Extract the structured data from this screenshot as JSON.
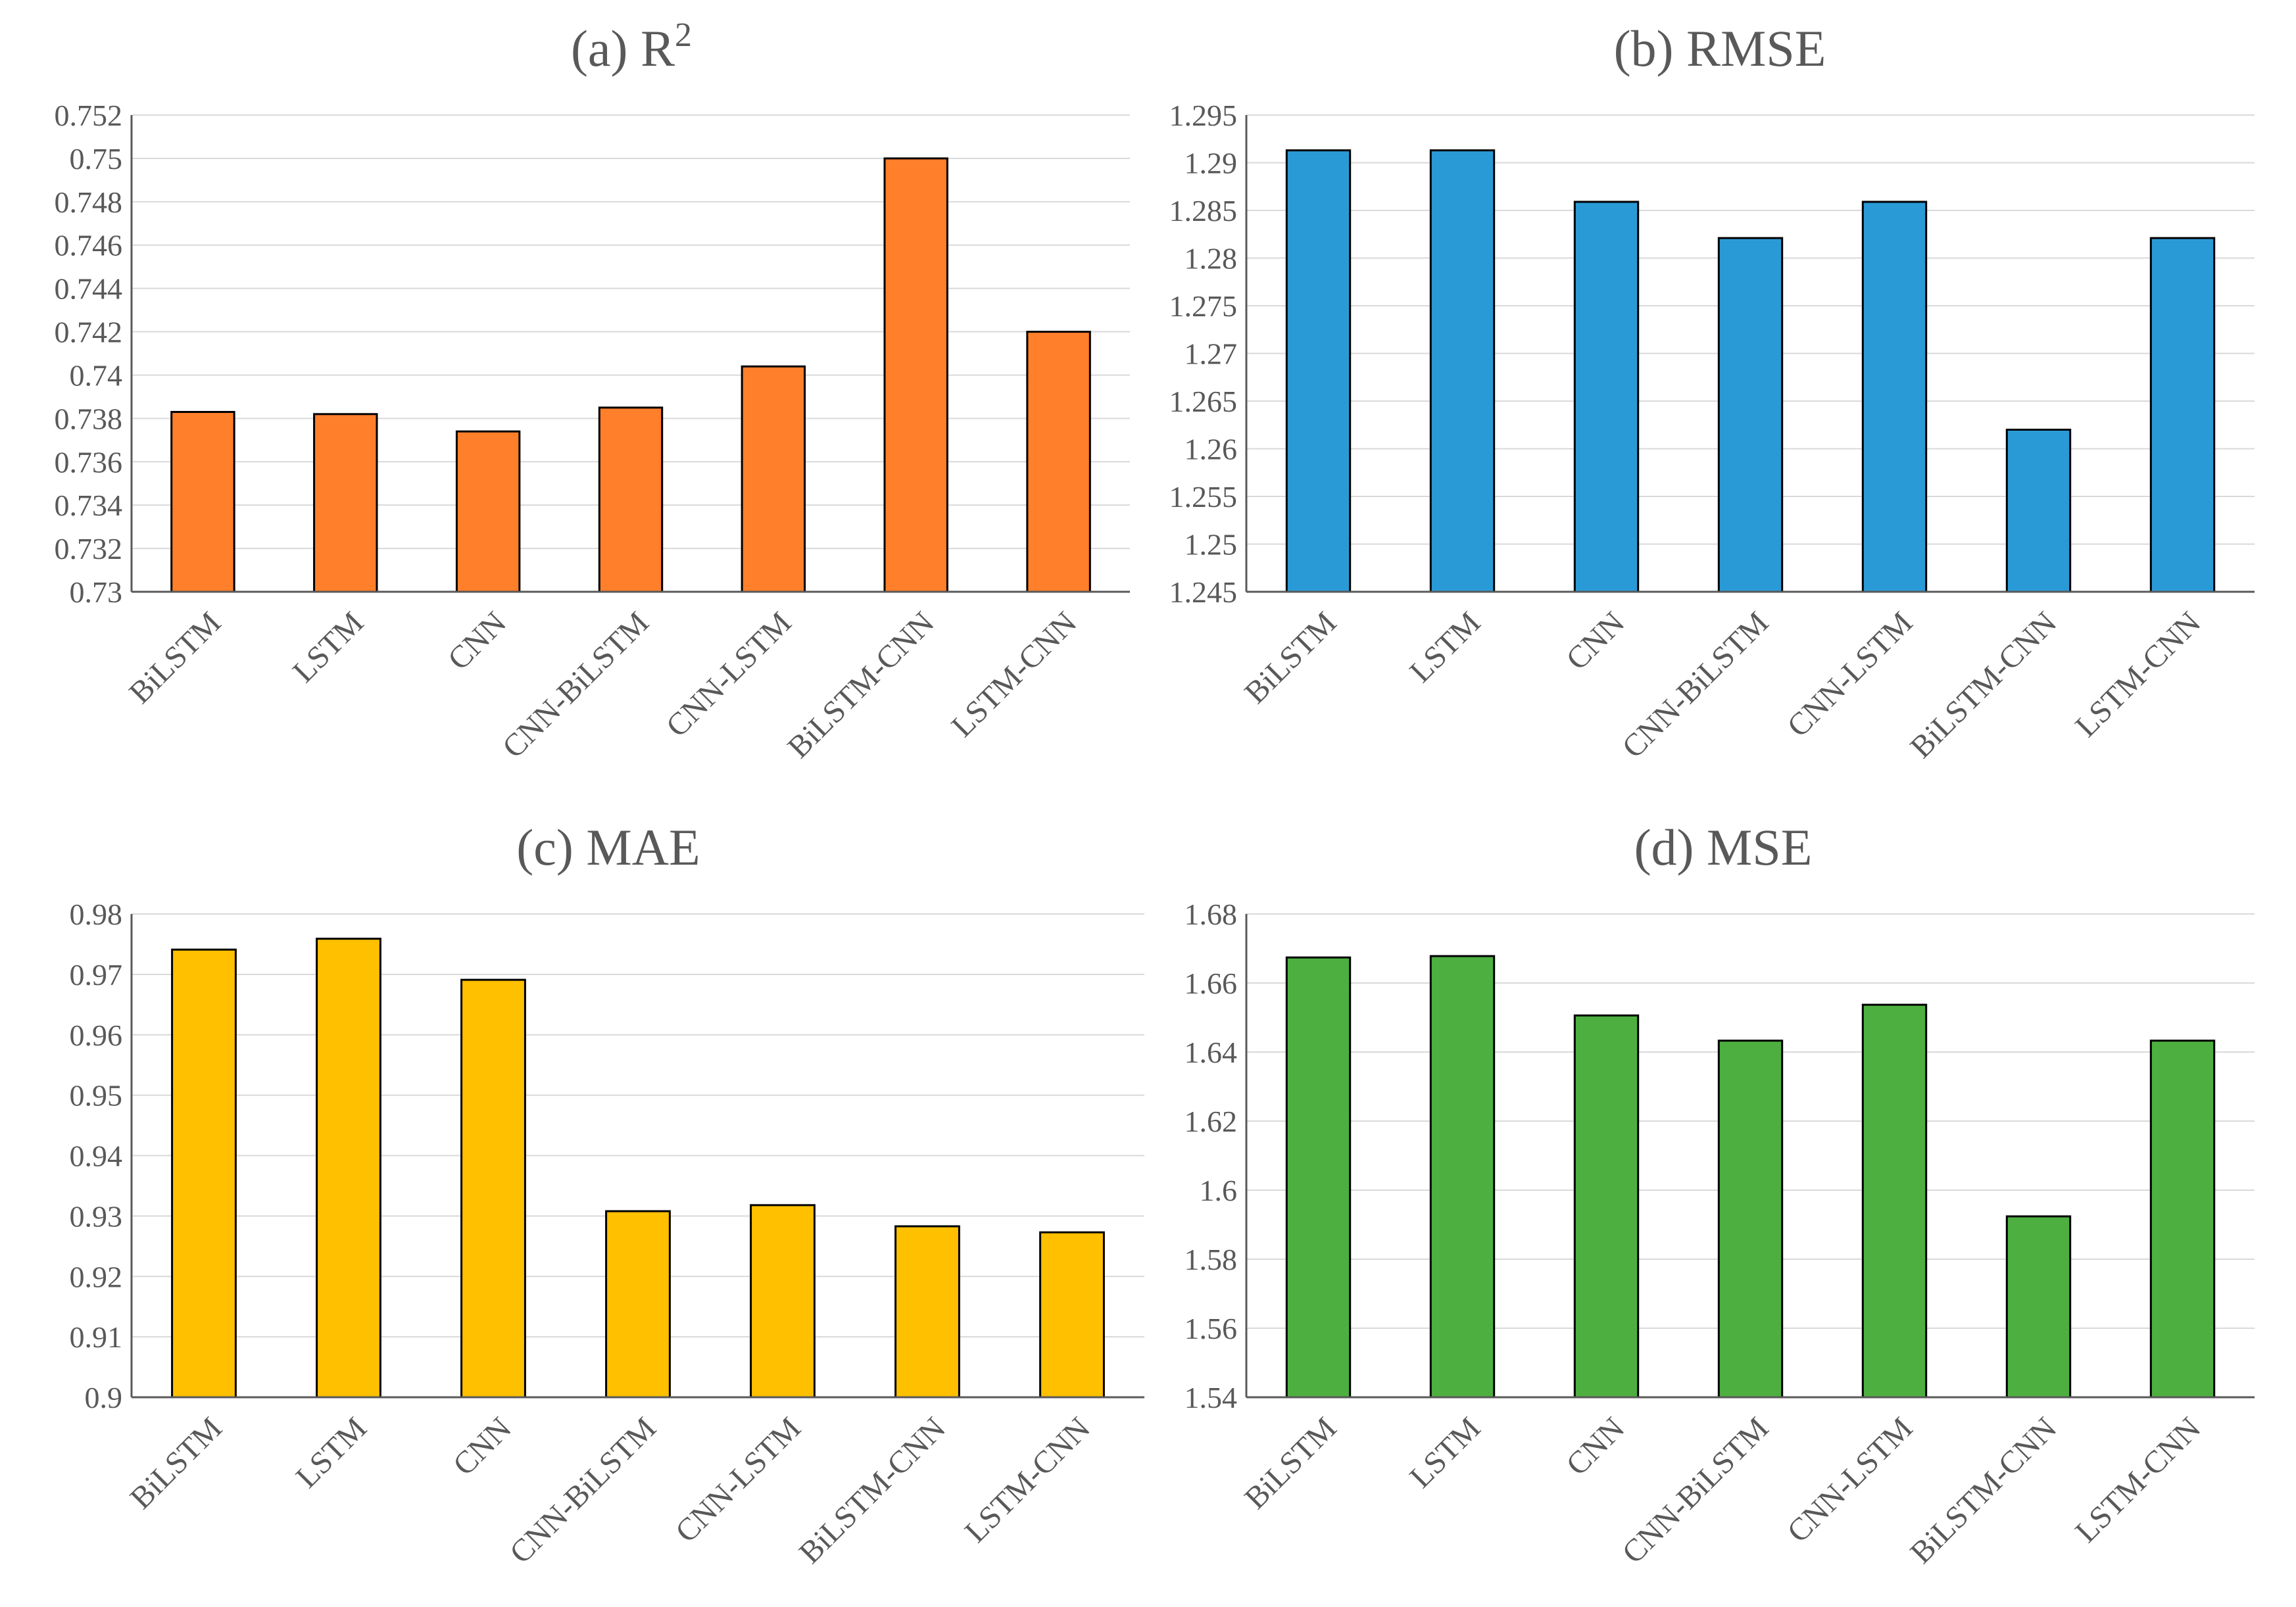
{
  "chart_data": [
    {
      "id": "a",
      "type": "bar",
      "title": "(a) R",
      "title_sup": "2",
      "categories": [
        "BiLSTM",
        "LSTM",
        "CNN",
        "CNN-BiLSTM",
        "CNN-LSTM",
        "BiLSTM-CNN",
        "LSTM-CNN"
      ],
      "values": [
        0.7383,
        0.7382,
        0.7374,
        0.7385,
        0.7404,
        0.75,
        0.742
      ],
      "ylim": [
        0.73,
        0.752
      ],
      "ticks": [
        0.73,
        0.732,
        0.734,
        0.736,
        0.738,
        0.74,
        0.742,
        0.744,
        0.746,
        0.748,
        0.75,
        0.752
      ],
      "tick_labels": [
        "0.73",
        "0.732",
        "0.734",
        "0.736",
        "0.738",
        "0.74",
        "0.742",
        "0.744",
        "0.746",
        "0.748",
        "0.75",
        "0.752"
      ],
      "color": "#FF7F2A",
      "xlabel": "",
      "ylabel": "",
      "grid": true
    },
    {
      "id": "b",
      "type": "bar",
      "title": "(b) RMSE",
      "title_sup": "",
      "categories": [
        "BiLSTM",
        "LSTM",
        "CNN",
        "CNN-BiLSTM",
        "CNN-LSTM",
        "BiLSTM-CNN",
        "LSTM-CNN"
      ],
      "values": [
        1.2913,
        1.2913,
        1.2859,
        1.2821,
        1.2859,
        1.262,
        1.2821
      ],
      "ylim": [
        1.245,
        1.295
      ],
      "ticks": [
        1.245,
        1.25,
        1.255,
        1.26,
        1.265,
        1.27,
        1.275,
        1.28,
        1.285,
        1.29,
        1.295
      ],
      "tick_labels": [
        "1.245",
        "1.25",
        "1.255",
        "1.26",
        "1.265",
        "1.27",
        "1.275",
        "1.28",
        "1.285",
        "1.29",
        "1.295"
      ],
      "color": "#2A9AD6",
      "xlabel": "",
      "ylabel": "",
      "grid": true
    },
    {
      "id": "c",
      "type": "bar",
      "title": "(c) MAE",
      "title_sup": "",
      "categories": [
        "BiLSTM",
        "LSTM",
        "CNN",
        "CNN-BiLSTM",
        "CNN-LSTM",
        "BiLSTM-CNN",
        "LSTM-CNN"
      ],
      "values": [
        0.9741,
        0.9759,
        0.9691,
        0.9308,
        0.9318,
        0.9283,
        0.9273
      ],
      "ylim": [
        0.9,
        0.98
      ],
      "ticks": [
        0.9,
        0.91,
        0.92,
        0.93,
        0.94,
        0.95,
        0.96,
        0.97,
        0.98
      ],
      "tick_labels": [
        "0.9",
        "0.91",
        "0.92",
        "0.93",
        "0.94",
        "0.95",
        "0.96",
        "0.97",
        "0.98"
      ],
      "color": "#FFC000",
      "xlabel": "",
      "ylabel": "",
      "grid": true
    },
    {
      "id": "d",
      "type": "bar",
      "title": "(d) MSE",
      "title_sup": "",
      "categories": [
        "BiLSTM",
        "LSTM",
        "CNN",
        "CNN-BiLSTM",
        "CNN-LSTM",
        "BiLSTM-CNN",
        "LSTM-CNN"
      ],
      "values": [
        1.6674,
        1.6678,
        1.6506,
        1.6433,
        1.6537,
        1.5924,
        1.6433
      ],
      "ylim": [
        1.54,
        1.68
      ],
      "ticks": [
        1.54,
        1.56,
        1.58,
        1.6,
        1.62,
        1.64,
        1.66,
        1.68
      ],
      "tick_labels": [
        "1.54",
        "1.56",
        "1.58",
        "1.6",
        "1.62",
        "1.64",
        "1.66",
        "1.68"
      ],
      "color": "#4DAF3F",
      "xlabel": "",
      "ylabel": "",
      "grid": true
    }
  ]
}
